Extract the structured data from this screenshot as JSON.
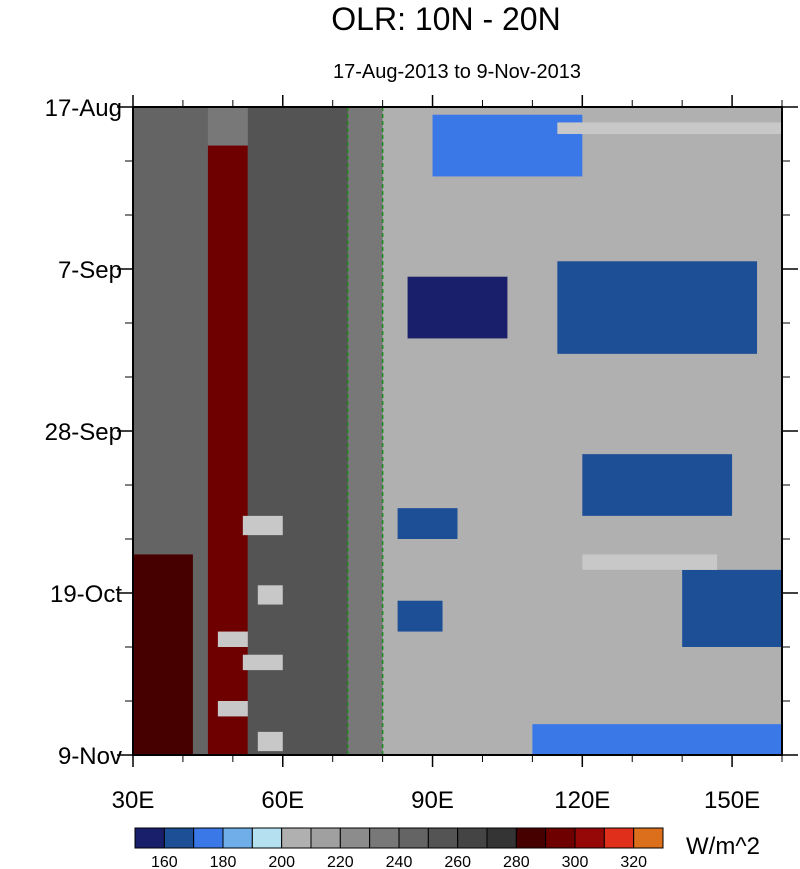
{
  "chart_data": {
    "type": "heatmap",
    "title": "OLR: 10N - 20N",
    "subtitle": "17-Aug-2013 to 9-Nov-2013",
    "units": "W/m^2",
    "x_axis": {
      "range": [
        30,
        160
      ],
      "ticks": [
        30,
        60,
        90,
        120,
        150
      ],
      "tick_labels": [
        "30E",
        "60E",
        "90E",
        "120E",
        "150E"
      ],
      "minor_ticks": [
        40,
        50,
        70,
        80,
        100,
        110,
        130,
        140,
        160
      ]
    },
    "y_axis": {
      "range": [
        "17-Aug-2013",
        "9-Nov-2013"
      ],
      "ticks": [
        "17-Aug",
        "7-Sep",
        "28-Sep",
        "19-Oct",
        "9-Nov"
      ],
      "tick_days": [
        0,
        21,
        42,
        63,
        84
      ]
    },
    "reference_lines": [
      {
        "lon": 73,
        "style": "dashed",
        "color": "#1a8a1a"
      },
      {
        "lon": 80,
        "style": "dashed",
        "color": "#1a8a1a"
      }
    ],
    "colorbar": {
      "levels": [
        160,
        170,
        180,
        190,
        200,
        210,
        220,
        230,
        240,
        250,
        260,
        270,
        280,
        290,
        300,
        310,
        320,
        330
      ],
      "labels": [
        "160",
        "180",
        "200",
        "220",
        "240",
        "260",
        "280",
        "300",
        "320"
      ],
      "colors": [
        "#1a1f6b",
        "#1d4f96",
        "#3a78e8",
        "#6faee8",
        "#b4e0f0",
        "#b0b0b0",
        "#a0a0a0",
        "#8c8c8c",
        "#787878",
        "#646464",
        "#545454",
        "#444444",
        "#343434",
        "#460000",
        "#6e0000",
        "#960808",
        "#e0301c",
        "#dc6f1c"
      ]
    },
    "missing_color": "#c8c8c8",
    "regions": [
      {
        "lon": [
          30,
          45
        ],
        "days": [
          0,
          84
        ],
        "value": 255,
        "note": "western grey band"
      },
      {
        "lon": [
          45,
          53
        ],
        "days": [
          5,
          84
        ],
        "value": 300
      },
      {
        "lon": [
          30,
          42
        ],
        "days": [
          58,
          84
        ],
        "value": 295
      },
      {
        "lon": [
          53,
          73
        ],
        "days": [
          0,
          84
        ],
        "value": 265
      },
      {
        "lon": [
          80,
          160
        ],
        "days": [
          0,
          84
        ],
        "value": 215
      },
      {
        "lon": [
          90,
          120
        ],
        "days": [
          1,
          9
        ],
        "value": 180
      },
      {
        "lon": [
          115,
          155
        ],
        "days": [
          20,
          32
        ],
        "value": 175
      },
      {
        "lon": [
          85,
          105
        ],
        "days": [
          22,
          30
        ],
        "value": 165
      },
      {
        "lon": [
          120,
          150
        ],
        "days": [
          45,
          53
        ],
        "value": 170
      },
      {
        "lon": [
          83,
          95
        ],
        "days": [
          52,
          56
        ],
        "value": 170
      },
      {
        "lon": [
          140,
          160
        ],
        "days": [
          60,
          70
        ],
        "value": 175
      },
      {
        "lon": [
          83,
          92
        ],
        "days": [
          64,
          68
        ],
        "value": 175
      },
      {
        "lon": [
          110,
          160
        ],
        "days": [
          80,
          84
        ],
        "value": 185
      }
    ],
    "missing_blocks": [
      {
        "lon": [
          115,
          160
        ],
        "days": [
          2,
          3.5
        ]
      },
      {
        "lon": [
          120,
          147
        ],
        "days": [
          58,
          60
        ]
      },
      {
        "lon": [
          52,
          60
        ],
        "days": [
          53,
          55.5
        ]
      },
      {
        "lon": [
          55,
          60
        ],
        "days": [
          62,
          64.5
        ]
      },
      {
        "lon": [
          47,
          53
        ],
        "days": [
          68,
          70
        ]
      },
      {
        "lon": [
          52,
          60
        ],
        "days": [
          71,
          73
        ]
      },
      {
        "lon": [
          47,
          53
        ],
        "days": [
          77,
          79
        ]
      },
      {
        "lon": [
          55,
          60
        ],
        "days": [
          81,
          83.5
        ]
      }
    ]
  }
}
